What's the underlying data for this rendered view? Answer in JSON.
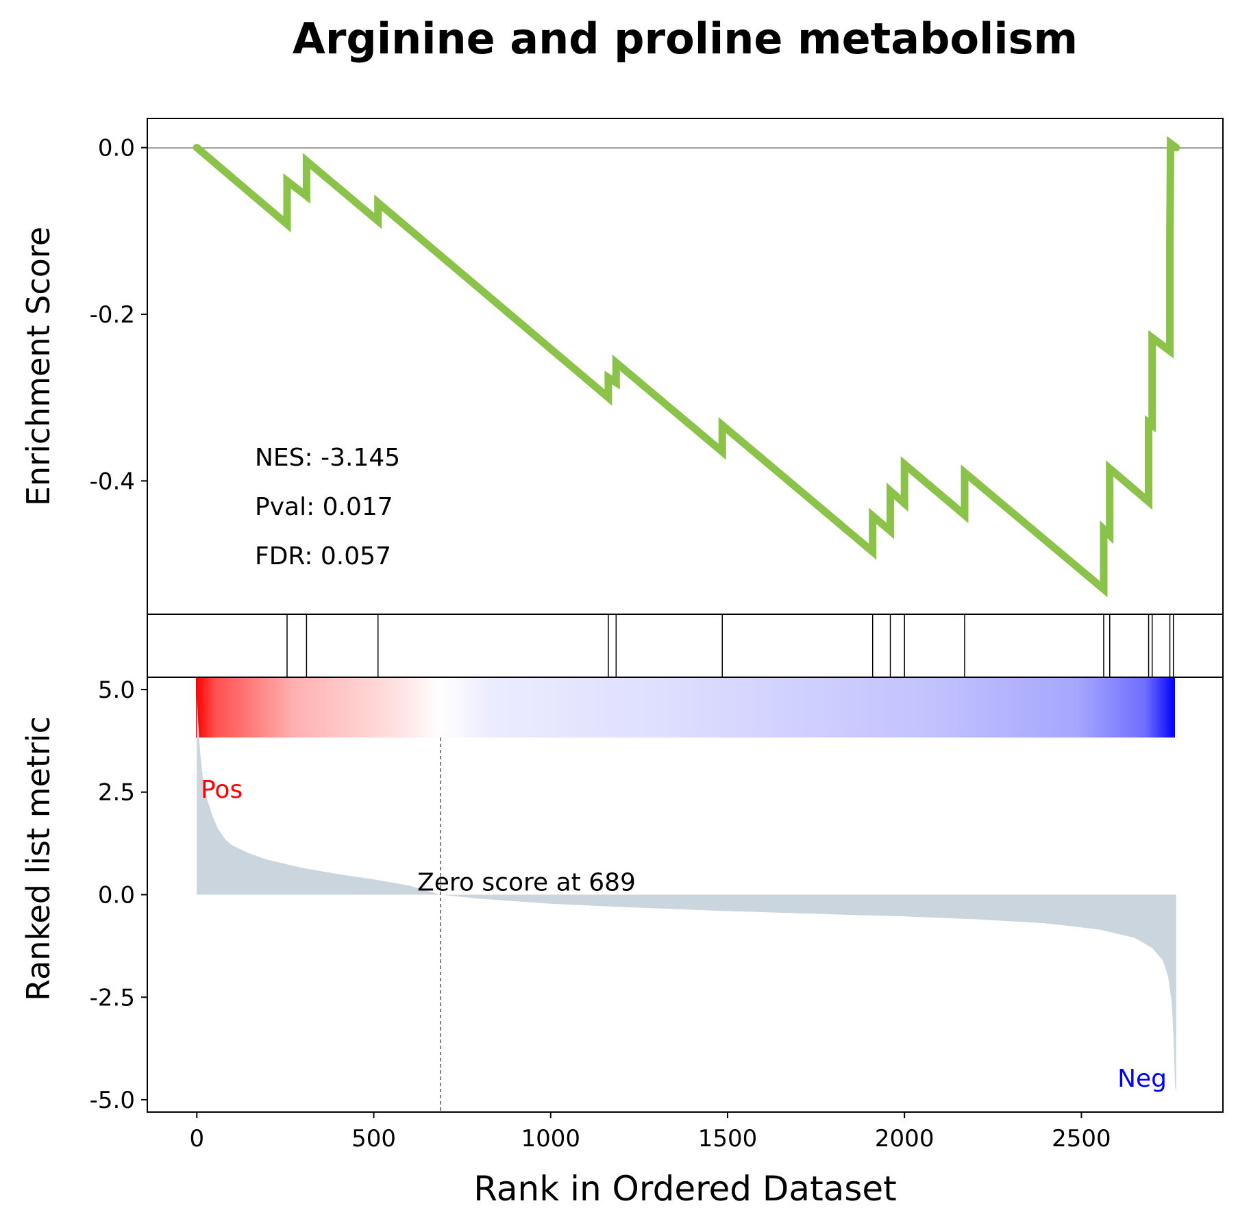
{
  "chart_data": {
    "type": "line",
    "title": "Arginine and proline metabolism",
    "xlabel": "Rank in Ordered Dataset",
    "x_ticks": [
      0,
      500,
      1000,
      1500,
      2000,
      2500
    ],
    "x_tick_labels": [
      "0",
      "500",
      "1000",
      "1500",
      "2000",
      "2500"
    ],
    "xlim": [
      -140,
      2900
    ],
    "colors": {
      "es_line": "#8bc34a",
      "metric_fill": "#cbd5de",
      "pos": "#ff0000",
      "neg": "#0000ff",
      "zero_line": "#808080"
    },
    "enrichment": {
      "ylabel": "Enrichment Score",
      "ylim": [
        -0.56,
        0.035
      ],
      "y_ticks": [
        0.0,
        -0.2,
        -0.4
      ],
      "y_tick_labels": [
        "0.0",
        "-0.2",
        "-0.4"
      ],
      "hit_ranks": [
        255,
        310,
        512,
        1163,
        1185,
        1485,
        1910,
        1960,
        2000,
        2170,
        2563,
        2580,
        2690,
        2700,
        2750,
        2760
      ],
      "es_points": [
        [
          0,
          0.0
        ],
        [
          255,
          -0.092
        ],
        [
          255,
          -0.04
        ],
        [
          310,
          -0.058
        ],
        [
          310,
          -0.016
        ],
        [
          512,
          -0.088
        ],
        [
          512,
          -0.066
        ],
        [
          1163,
          -0.3
        ],
        [
          1163,
          -0.276
        ],
        [
          1185,
          -0.282
        ],
        [
          1185,
          -0.258
        ],
        [
          1485,
          -0.365
        ],
        [
          1485,
          -0.333
        ],
        [
          1910,
          -0.485
        ],
        [
          1910,
          -0.442
        ],
        [
          1960,
          -0.46
        ],
        [
          1960,
          -0.412
        ],
        [
          2000,
          -0.427
        ],
        [
          2000,
          -0.38
        ],
        [
          2170,
          -0.441
        ],
        [
          2170,
          -0.39
        ],
        [
          2563,
          -0.53
        ],
        [
          2563,
          -0.458
        ],
        [
          2580,
          -0.465
        ],
        [
          2580,
          -0.385
        ],
        [
          2690,
          -0.425
        ],
        [
          2690,
          -0.33
        ],
        [
          2700,
          -0.333
        ],
        [
          2700,
          -0.228
        ],
        [
          2750,
          -0.244
        ],
        [
          2750,
          -0.12
        ],
        [
          2752,
          0.005
        ],
        [
          2768,
          0.0
        ]
      ],
      "stats": {
        "nes": "NES: -3.145",
        "pval": "Pval: 0.017",
        "fdr": "FDR: 0.057"
      }
    },
    "ranked_metric": {
      "ylabel": "Ranked list metric",
      "ylim": [
        -5.3,
        5.3
      ],
      "y_ticks": [
        5.0,
        2.5,
        0.0,
        -2.5,
        -5.0
      ],
      "y_tick_labels": [
        "5.0",
        "2.5",
        "0.0",
        "-2.5",
        "-5.0"
      ],
      "curve": [
        [
          0,
          4.9
        ],
        [
          3,
          4.3
        ],
        [
          6,
          3.9
        ],
        [
          10,
          3.4
        ],
        [
          15,
          3.0
        ],
        [
          20,
          2.7
        ],
        [
          30,
          2.3
        ],
        [
          45,
          1.9
        ],
        [
          60,
          1.6
        ],
        [
          80,
          1.35
        ],
        [
          100,
          1.2
        ],
        [
          150,
          1.0
        ],
        [
          200,
          0.85
        ],
        [
          250,
          0.75
        ],
        [
          300,
          0.65
        ],
        [
          400,
          0.5
        ],
        [
          500,
          0.37
        ],
        [
          600,
          0.22
        ],
        [
          689,
          0.0
        ],
        [
          800,
          -0.1
        ],
        [
          1000,
          -0.22
        ],
        [
          1200,
          -0.3
        ],
        [
          1500,
          -0.4
        ],
        [
          1800,
          -0.48
        ],
        [
          2000,
          -0.53
        ],
        [
          2200,
          -0.6
        ],
        [
          2400,
          -0.7
        ],
        [
          2550,
          -0.85
        ],
        [
          2650,
          -1.05
        ],
        [
          2700,
          -1.3
        ],
        [
          2730,
          -1.6
        ],
        [
          2745,
          -2.0
        ],
        [
          2755,
          -2.6
        ],
        [
          2760,
          -3.4
        ],
        [
          2765,
          -4.7
        ],
        [
          2768,
          -4.8
        ]
      ],
      "max_rank": 2768,
      "zero_rank": 689,
      "zero_label": "Zero score at 689",
      "pos_label": "Pos",
      "neg_label": "Neg"
    }
  }
}
